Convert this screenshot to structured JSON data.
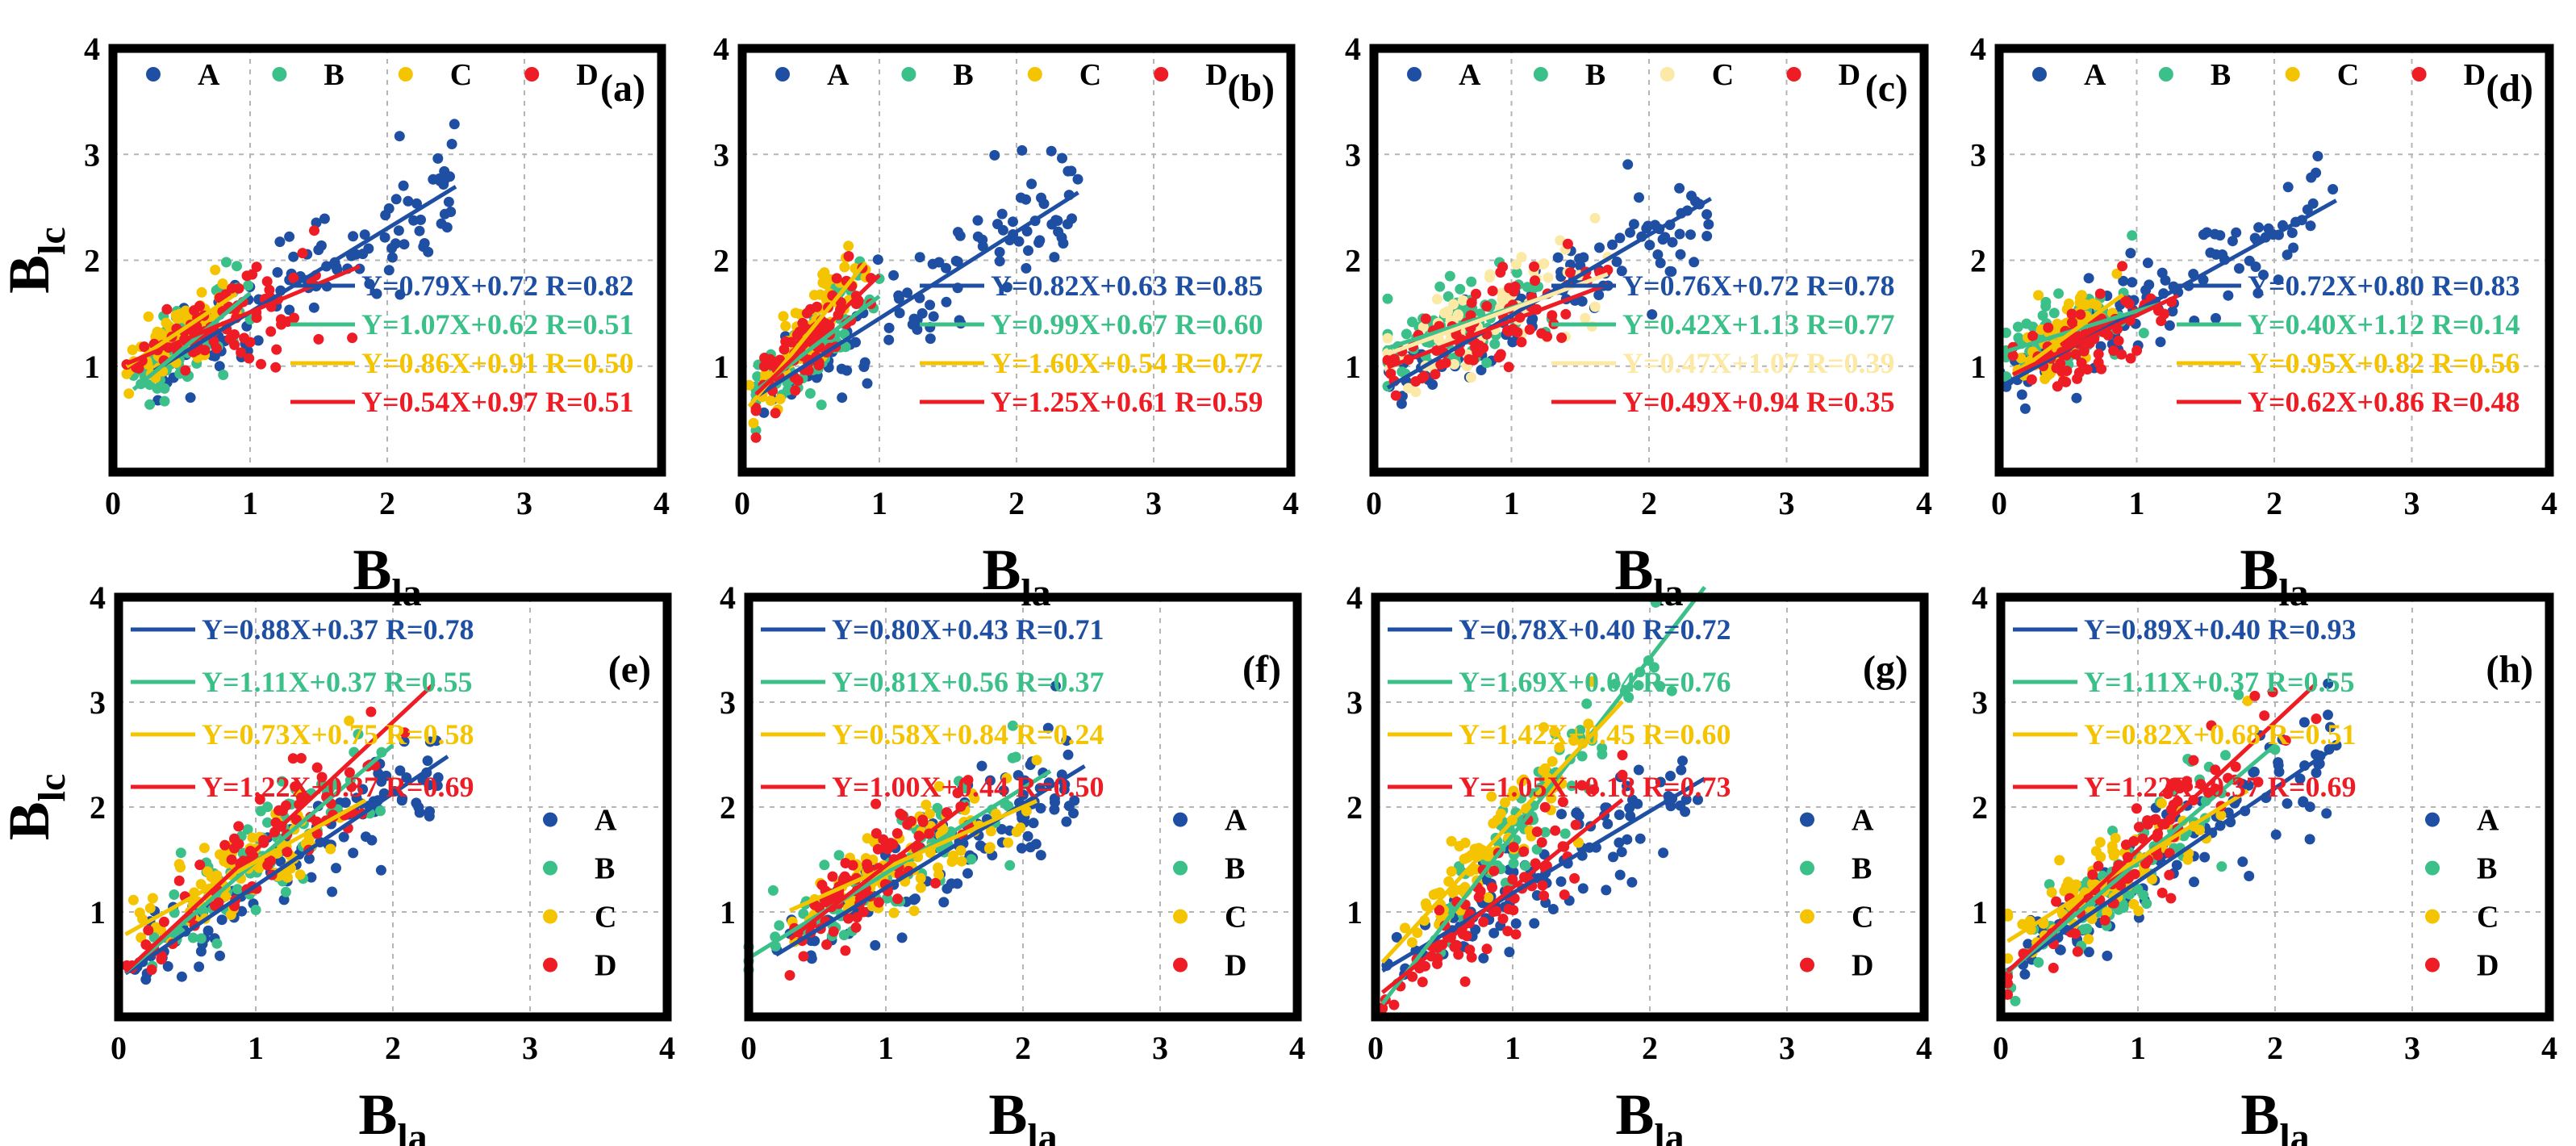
{
  "figure": {
    "xlabel": "B",
    "xlabel_sub": "la",
    "ylabel": "B",
    "ylabel_sub": "lc"
  },
  "colors": {
    "A": "#1f4fa3",
    "B": "#3cc08a",
    "C": "#f5c400",
    "D": "#ee1c25",
    "C_light": "#fde9a6"
  },
  "chart_data": [
    {
      "type": "scatter",
      "panel": "(a)",
      "xlim": [
        0,
        4
      ],
      "ylim": [
        0,
        4
      ],
      "xticks": [
        0,
        1,
        2,
        3,
        4
      ],
      "yticks": [
        1,
        2,
        3,
        4
      ],
      "grid": true,
      "legend_position": "top",
      "fit_position": "bottom-right",
      "series": [
        {
          "name": "A",
          "color": "#1f4fa3",
          "x_range": [
            0.3,
            2.5
          ],
          "slope": 0.79,
          "intercept": 0.72,
          "R": 0.82,
          "label": "Y=0.79X+0.72 R=0.82"
        },
        {
          "name": "B",
          "color": "#3cc08a",
          "x_range": [
            0.15,
            1.0
          ],
          "slope": 1.07,
          "intercept": 0.62,
          "R": 0.51,
          "label": "Y=1.07X+0.62 R=0.51"
        },
        {
          "name": "C",
          "color": "#f5c400",
          "x_range": [
            0.1,
            0.9
          ],
          "slope": 0.86,
          "intercept": 0.91,
          "R": 0.5,
          "label": "Y=0.86X+0.91 R=0.50"
        },
        {
          "name": "D",
          "color": "#ee1c25",
          "x_range": [
            0.1,
            1.8
          ],
          "slope": 0.54,
          "intercept": 0.97,
          "R": 0.51,
          "label": "Y=0.54X+0.97 R=0.51"
        }
      ]
    },
    {
      "type": "scatter",
      "panel": "(b)",
      "xlim": [
        0,
        4
      ],
      "ylim": [
        0,
        4
      ],
      "xticks": [
        0,
        1,
        2,
        3,
        4
      ],
      "yticks": [
        1,
        2,
        3,
        4
      ],
      "grid": true,
      "legend_position": "top",
      "fit_position": "bottom-right",
      "series": [
        {
          "name": "A",
          "color": "#1f4fa3",
          "x_range": [
            0.1,
            2.45
          ],
          "slope": 0.82,
          "intercept": 0.63,
          "R": 0.85,
          "label": "Y=0.82X+0.63 R=0.85"
        },
        {
          "name": "B",
          "color": "#3cc08a",
          "x_range": [
            0.1,
            1.0
          ],
          "slope": 0.99,
          "intercept": 0.67,
          "R": 0.6,
          "label": "Y=0.99X+0.67 R=0.60"
        },
        {
          "name": "C",
          "color": "#f5c400",
          "x_range": [
            0.05,
            0.9
          ],
          "slope": 1.6,
          "intercept": 0.54,
          "R": 0.77,
          "label": "Y=1.60X+0.54 R=0.77"
        },
        {
          "name": "D",
          "color": "#ee1c25",
          "x_range": [
            0.1,
            1.0
          ],
          "slope": 1.25,
          "intercept": 0.61,
          "R": 0.59,
          "label": "Y=1.25X+0.61 R=0.59"
        }
      ]
    },
    {
      "type": "scatter",
      "panel": "(c)",
      "xlim": [
        0,
        4
      ],
      "ylim": [
        0,
        4
      ],
      "xticks": [
        0,
        1,
        2,
        3,
        4
      ],
      "yticks": [
        1,
        2,
        3,
        4
      ],
      "grid": true,
      "legend_position": "top",
      "fit_position": "bottom-right",
      "series": [
        {
          "name": "A",
          "color": "#1f4fa3",
          "x_range": [
            0.1,
            2.45
          ],
          "slope": 0.76,
          "intercept": 0.72,
          "R": 0.78,
          "label": "Y=0.76X+0.72 R=0.78"
        },
        {
          "name": "B",
          "color": "#3cc08a",
          "x_range": [
            0.1,
            1.3
          ],
          "slope": 0.42,
          "intercept": 1.13,
          "R": 0.77,
          "label": "Y=0.42X+1.13 R=0.77"
        },
        {
          "name": "C",
          "color": "#fde9a6",
          "x_range": [
            0.1,
            1.7
          ],
          "slope": 0.47,
          "intercept": 1.07,
          "R": 0.39,
          "label": "Y=0.47X+1.07 R=0.39"
        },
        {
          "name": "D",
          "color": "#ee1c25",
          "x_range": [
            0.1,
            1.7
          ],
          "slope": 0.49,
          "intercept": 0.94,
          "R": 0.35,
          "label": "Y=0.49X+0.94 R=0.35"
        }
      ]
    },
    {
      "type": "scatter",
      "panel": "(d)",
      "xlim": [
        0,
        4
      ],
      "ylim": [
        0,
        4
      ],
      "xticks": [
        0,
        1,
        2,
        3,
        4
      ],
      "yticks": [
        1,
        2,
        3,
        4
      ],
      "grid": true,
      "legend_position": "top",
      "fit_position": "bottom-right",
      "series": [
        {
          "name": "A",
          "color": "#1f4fa3",
          "x_range": [
            0.0,
            2.45
          ],
          "slope": 0.72,
          "intercept": 0.8,
          "R": 0.83,
          "label": "Y=0.72X+0.80 R=0.83"
        },
        {
          "name": "B",
          "color": "#3cc08a",
          "x_range": [
            0.05,
            1.2
          ],
          "slope": 0.4,
          "intercept": 1.12,
          "R": 0.14,
          "label": "Y=0.40X+1.12 R=0.14"
        },
        {
          "name": "C",
          "color": "#f5c400",
          "x_range": [
            0.1,
            0.9
          ],
          "slope": 0.95,
          "intercept": 0.82,
          "R": 0.56,
          "label": "Y=0.95X+0.82 R=0.56"
        },
        {
          "name": "D",
          "color": "#ee1c25",
          "x_range": [
            0.1,
            1.3
          ],
          "slope": 0.62,
          "intercept": 0.86,
          "R": 0.48,
          "label": "Y=0.62X+0.86 R=0.48"
        }
      ]
    },
    {
      "type": "scatter",
      "panel": "(e)",
      "xlim": [
        0,
        4
      ],
      "ylim": [
        0,
        4
      ],
      "xticks": [
        0,
        1,
        2,
        3,
        4
      ],
      "yticks": [
        1,
        2,
        3,
        4
      ],
      "grid": true,
      "legend_position": "right",
      "fit_position": "top-left",
      "series": [
        {
          "name": "A",
          "color": "#1f4fa3",
          "x_range": [
            0.05,
            2.4
          ],
          "slope": 0.88,
          "intercept": 0.37,
          "R": 0.78,
          "label": "Y=0.88X+0.37 R=0.78"
        },
        {
          "name": "B",
          "color": "#3cc08a",
          "x_range": [
            0.05,
            2.0
          ],
          "slope": 1.11,
          "intercept": 0.37,
          "R": 0.55,
          "label": "Y=1.11X+0.37 R=0.55"
        },
        {
          "name": "C",
          "color": "#f5c400",
          "x_range": [
            0.05,
            1.8
          ],
          "slope": 0.73,
          "intercept": 0.75,
          "R": 0.58,
          "label": "Y=0.73X+0.75 R=0.58"
        },
        {
          "name": "D",
          "color": "#ee1c25",
          "x_range": [
            0.05,
            2.3
          ],
          "slope": 1.22,
          "intercept": 0.37,
          "R": 0.69,
          "label": "Y=1.22X+0.37 R=0.69"
        }
      ]
    },
    {
      "type": "scatter",
      "panel": "(f)",
      "xlim": [
        0,
        4
      ],
      "ylim": [
        0,
        4
      ],
      "xticks": [
        0,
        1,
        2,
        3,
        4
      ],
      "yticks": [
        1,
        2,
        3,
        4
      ],
      "grid": true,
      "legend_position": "right",
      "fit_position": "top-left",
      "series": [
        {
          "name": "A",
          "color": "#1f4fa3",
          "x_range": [
            0.2,
            2.45
          ],
          "slope": 0.8,
          "intercept": 0.43,
          "R": 0.71,
          "label": "Y=0.80X+0.43 R=0.71"
        },
        {
          "name": "B",
          "color": "#3cc08a",
          "x_range": [
            0.0,
            2.2
          ],
          "slope": 0.81,
          "intercept": 0.56,
          "R": 0.37,
          "label": "Y=0.81X+0.56 R=0.37"
        },
        {
          "name": "C",
          "color": "#f5c400",
          "x_range": [
            0.3,
            2.1
          ],
          "slope": 0.58,
          "intercept": 0.84,
          "R": 0.24,
          "label": "Y=0.58X+0.84 R=0.24"
        },
        {
          "name": "D",
          "color": "#ee1c25",
          "x_range": [
            0.3,
            1.6
          ],
          "slope": 1.0,
          "intercept": 0.44,
          "R": 0.5,
          "label": "Y=1.00X+0.44 R=0.50"
        }
      ]
    },
    {
      "type": "scatter",
      "panel": "(g)",
      "xlim": [
        0,
        4
      ],
      "ylim": [
        0,
        4
      ],
      "xticks": [
        0,
        1,
        2,
        3,
        4
      ],
      "yticks": [
        1,
        2,
        3,
        4
      ],
      "grid": true,
      "legend_position": "right",
      "fit_position": "top-left",
      "series": [
        {
          "name": "A",
          "color": "#1f4fa3",
          "x_range": [
            0.05,
            2.4
          ],
          "slope": 0.78,
          "intercept": 0.4,
          "R": 0.72,
          "label": "Y=0.78X+0.40 R=0.72"
        },
        {
          "name": "B",
          "color": "#3cc08a",
          "x_range": [
            0.05,
            2.4
          ],
          "slope": 1.69,
          "intercept": 0.04,
          "R": 0.76,
          "label": "Y=1.69X+0.04 R=0.76"
        },
        {
          "name": "C",
          "color": "#f5c400",
          "x_range": [
            0.05,
            1.8
          ],
          "slope": 1.42,
          "intercept": 0.45,
          "R": 0.6,
          "label": "Y=1.42X+0.45 R=0.60"
        },
        {
          "name": "D",
          "color": "#ee1c25",
          "x_range": [
            0.05,
            1.8
          ],
          "slope": 1.05,
          "intercept": 0.18,
          "R": 0.73,
          "label": "Y=1.05X+0.18 R=0.73"
        }
      ]
    },
    {
      "type": "scatter",
      "panel": "(h)",
      "xlim": [
        0,
        4
      ],
      "ylim": [
        0,
        4
      ],
      "xticks": [
        0,
        1,
        2,
        3,
        4
      ],
      "yticks": [
        1,
        2,
        3,
        4
      ],
      "grid": true,
      "legend_position": "right",
      "fit_position": "top-left",
      "series": [
        {
          "name": "A",
          "color": "#1f4fa3",
          "x_range": [
            0.05,
            2.45
          ],
          "slope": 0.89,
          "intercept": 0.4,
          "R": 0.93,
          "label": "Y=0.89X+0.40 R=0.93"
        },
        {
          "name": "B",
          "color": "#3cc08a",
          "x_range": [
            0.05,
            2.0
          ],
          "slope": 1.11,
          "intercept": 0.37,
          "R": 0.55,
          "label": "Y=1.11X+0.37 R=0.55"
        },
        {
          "name": "C",
          "color": "#f5c400",
          "x_range": [
            0.05,
            1.8
          ],
          "slope": 0.82,
          "intercept": 0.68,
          "R": 0.51,
          "label": "Y=0.82X+0.68 R=0.51"
        },
        {
          "name": "D",
          "color": "#ee1c25",
          "x_range": [
            0.05,
            2.3
          ],
          "slope": 1.22,
          "intercept": 0.37,
          "R": 0.69,
          "label": "Y=1.22X+0.37 R=0.69"
        }
      ]
    }
  ]
}
